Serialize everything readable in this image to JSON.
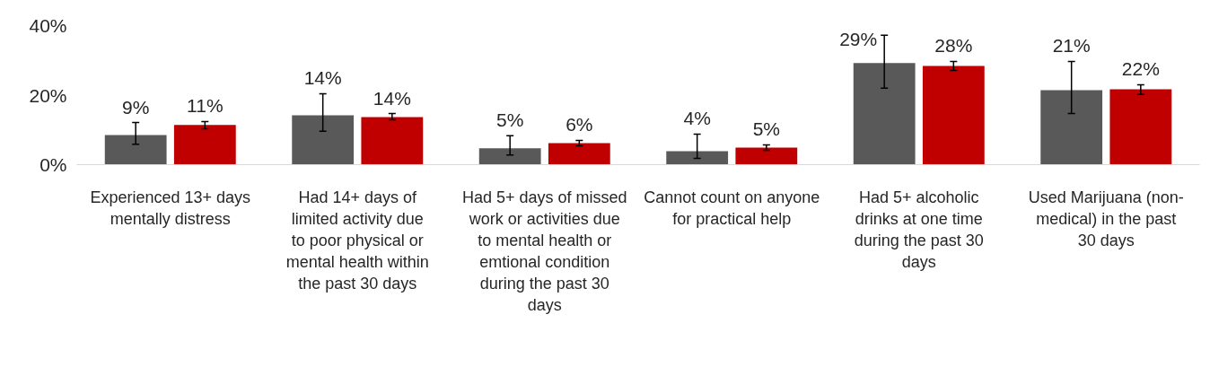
{
  "chart_data": {
    "type": "bar",
    "categories": [
      "Experienced 13+ days mentally distress",
      "Had 14+ days of limited activity due to poor physical or mental health within the past 30 days",
      "Had 5+ days of missed work or activities due to mental health or emtional condition during the past 30 days",
      "Cannot count on anyone for practical help",
      "Had 5+ alcoholic drinks at one time during the past 30 days",
      "Used Marijuana (non-medical) in the past 30 days"
    ],
    "series": [
      {
        "color": "#595959",
        "values": [
          8.5,
          14.2,
          4.7,
          3.9,
          29.2,
          21.4
        ],
        "errors": [
          [
            5.9,
            12.1
          ],
          [
            9.6,
            20.4
          ],
          [
            2.8,
            8.3
          ],
          [
            1.8,
            8.8
          ],
          [
            22,
            37.2
          ],
          [
            14.7,
            29.7
          ]
        ],
        "value_labels": [
          "9%",
          "14%",
          "5%",
          "4%",
          "29%",
          "21%"
        ]
      },
      {
        "color": "#c00000",
        "values": [
          11.4,
          13.7,
          6.2,
          4.9,
          28.4,
          21.7
        ],
        "errors": [
          [
            10.3,
            12.4
          ],
          [
            12.9,
            14.7
          ],
          [
            5.4,
            7
          ],
          [
            4.1,
            5.7
          ],
          [
            27.1,
            29.7
          ],
          [
            20.2,
            23
          ]
        ],
        "value_labels": [
          "11%",
          "14%",
          "6%",
          "5%",
          "28%",
          "22%"
        ]
      }
    ],
    "ylim": [
      0,
      40
    ],
    "yticks": [
      {
        "value": 0,
        "label": "0%"
      },
      {
        "value": 20,
        "label": "20%"
      },
      {
        "value": 40,
        "label": "40%"
      }
    ],
    "grid": false
  }
}
